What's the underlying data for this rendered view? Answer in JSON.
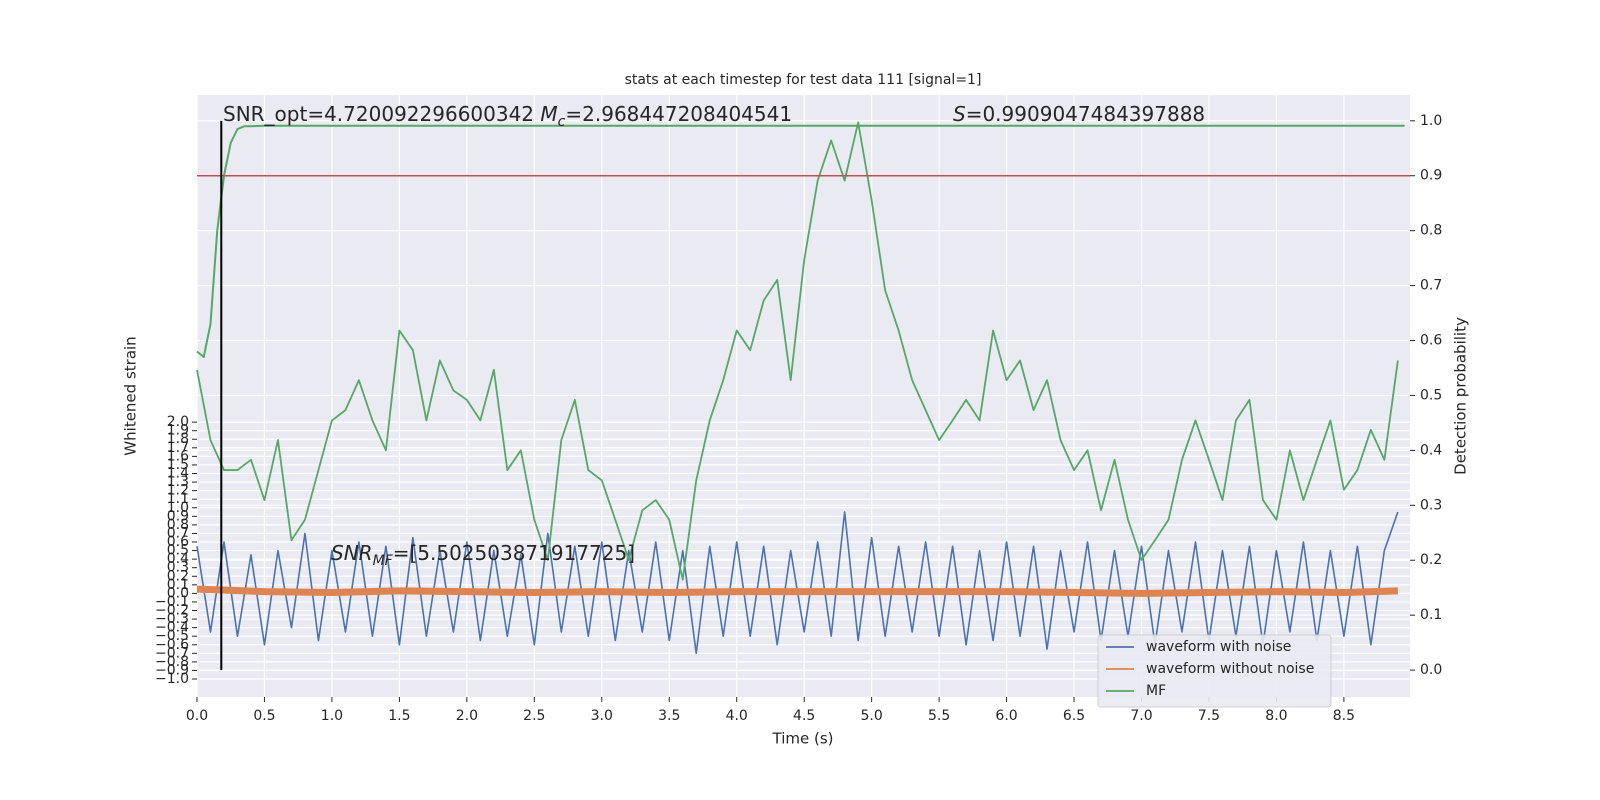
{
  "chart_data": {
    "type": "line",
    "title": "stats at each timestep for test data 111 [signal=1]",
    "xlabel": "Time (s)",
    "ylabel": "Whitened strain",
    "y2label": "Detection probability",
    "grid": true,
    "legend": "lower right",
    "threshold": 0.9,
    "threshold_color": "#c44e52",
    "marker_x": 0.18,
    "annotations": [
      {
        "parts": [
          {
            "text": "SNR_opt=4.720092296600342 "
          },
          {
            "text": "M",
            "style": "italic"
          },
          {
            "text": "c",
            "style": "sub"
          },
          {
            "text": "=2.968447208404541"
          }
        ]
      },
      {
        "parts": [
          {
            "text": "S",
            "style": "italic"
          },
          {
            "text": "=0.9909047484397888"
          }
        ]
      },
      {
        "parts": [
          {
            "text": "SNR",
            "style": "italic"
          },
          {
            "text": "MF",
            "style": "sub"
          },
          {
            "text": "=[5.502503871917725]"
          }
        ]
      }
    ],
    "x": [
      0,
      0.1,
      0.2,
      0.3,
      0.4,
      0.5,
      0.6,
      0.7,
      0.8,
      0.9,
      1,
      1.1,
      1.2,
      1.3,
      1.4,
      1.5,
      1.6,
      1.7,
      1.8,
      1.9,
      2,
      2.1,
      2.2,
      2.3,
      2.4,
      2.5,
      2.6,
      2.7,
      2.8,
      2.9,
      3,
      3.1,
      3.2,
      3.3,
      3.4,
      3.5,
      3.6,
      3.7,
      3.8,
      3.9,
      4,
      4.1,
      4.2,
      4.3,
      4.4,
      4.5,
      4.6,
      4.7,
      4.8,
      4.9,
      5,
      5.1,
      5.2,
      5.3,
      5.4,
      5.5,
      5.6,
      5.7,
      5.8,
      5.9,
      6,
      6.1,
      6.2,
      6.3,
      6.4,
      6.5,
      6.6,
      6.7,
      6.8,
      6.9,
      7,
      7.1,
      7.2,
      7.3,
      7.4,
      7.5,
      7.6,
      7.7,
      7.8,
      7.9,
      8,
      8.1,
      8.2,
      8.3,
      8.4,
      8.5,
      8.6,
      8.7,
      8.8,
      8.9
    ],
    "series": [
      {
        "name": "waveform with noise",
        "color": "#4c72b0",
        "values": [
          0.55,
          -0.45,
          0.6,
          -0.5,
          0.45,
          -0.6,
          0.5,
          -0.4,
          0.7,
          -0.55,
          0.5,
          -0.45,
          0.6,
          -0.5,
          0.55,
          -0.6,
          0.65,
          -0.5,
          0.5,
          -0.45,
          0.6,
          -0.55,
          0.5,
          -0.5,
          0.45,
          -0.6,
          0.7,
          -0.45,
          0.55,
          -0.5,
          0.6,
          -0.55,
          0.5,
          -0.45,
          0.6,
          -0.55,
          0.5,
          -0.7,
          0.55,
          -0.5,
          0.6,
          -0.5,
          0.55,
          -0.6,
          0.5,
          -0.45,
          0.6,
          -0.5,
          0.95,
          -0.55,
          0.65,
          -0.5,
          0.55,
          -0.45,
          0.6,
          -0.5,
          0.55,
          -0.6,
          0.5,
          -0.55,
          0.6,
          -0.5,
          0.55,
          -0.65,
          0.5,
          -0.45,
          0.6,
          -0.55,
          0.5,
          -0.5,
          0.55,
          -0.6,
          0.5,
          -0.45,
          0.6,
          -0.55,
          0.5,
          -0.5,
          0.55,
          -0.6,
          0.5,
          -0.45,
          0.6,
          -0.55,
          0.5,
          -0.5,
          0.55,
          -0.6,
          0.5,
          0.95
        ]
      },
      {
        "name": "waveform without noise",
        "color": "#dd8452",
        "x": [
          0,
          0.5,
          1,
          1.5,
          2,
          2.5,
          3,
          3.5,
          4,
          4.5,
          5,
          5.5,
          6,
          6.5,
          7,
          7.5,
          8,
          8.5,
          8.9
        ],
        "values": [
          0.05,
          0.02,
          0.01,
          0.03,
          0.02,
          0.01,
          0.02,
          0.01,
          0.02,
          0.02,
          0.02,
          0.02,
          0.02,
          0.01,
          0.0,
          0.01,
          0.02,
          0.01,
          0.03
        ]
      },
      {
        "name": "MF",
        "color": "#55a868",
        "values": [
          2.61,
          1.79,
          1.44,
          1.44,
          1.56,
          1.09,
          1.79,
          0.62,
          0.86,
          1.44,
          2.02,
          2.14,
          2.49,
          2.02,
          1.67,
          3.07,
          2.84,
          2.02,
          2.72,
          2.37,
          2.26,
          2.02,
          2.61,
          1.44,
          1.67,
          0.86,
          0.39,
          1.79,
          2.26,
          1.44,
          1.32,
          0.86,
          0.39,
          0.97,
          1.09,
          0.86,
          0.16,
          1.32,
          2.02,
          2.49,
          3.07,
          2.84,
          3.42,
          3.66,
          2.49,
          3.89,
          4.82,
          5.29,
          4.82,
          5.5,
          4.59,
          3.54,
          3.07,
          2.49,
          2.14,
          1.79,
          2.02,
          2.26,
          2.02,
          3.07,
          2.49,
          2.72,
          2.14,
          2.49,
          1.79,
          1.44,
          1.67,
          0.97,
          1.56,
          0.86,
          0.39,
          0.62,
          0.86,
          1.56,
          2.02,
          1.56,
          1.09,
          2.02,
          2.26,
          1.09,
          0.86,
          1.67,
          1.09,
          1.56,
          2.02,
          1.21,
          1.44,
          1.91,
          1.56,
          2.72
        ]
      },
      {
        "color": "#55a868",
        "axis": "y2",
        "x": [
          0,
          0.05,
          0.1,
          0.15,
          0.2,
          0.25,
          0.3,
          0.35,
          0.4,
          0.5,
          8.95
        ],
        "values": [
          0.58,
          0.57,
          0.63,
          0.8,
          0.9,
          0.96,
          0.985,
          0.99,
          0.99,
          0.991,
          0.991
        ]
      }
    ],
    "xlim": [
      0,
      8.99
    ],
    "xticks": [
      {
        "value": 0,
        "label": "0.0"
      },
      0.5,
      {
        "value": 1,
        "label": "1.0"
      },
      1.5,
      {
        "value": 2,
        "label": "2.0"
      },
      2.5,
      {
        "value": 3,
        "label": "3.0"
      },
      3.5,
      {
        "value": 4,
        "label": "4.0"
      },
      4.5,
      {
        "value": 5,
        "label": "5.0"
      },
      5.5,
      {
        "value": 6,
        "label": "6.0"
      },
      6.5,
      {
        "value": 7,
        "label": "7.0"
      },
      7.5,
      {
        "value": 8,
        "label": "8.0"
      },
      8.5
    ],
    "ylim": [
      -1.21,
      5.82
    ],
    "yticks": [
      {
        "value": -1,
        "label": "−1.0"
      },
      {
        "value": -0.9,
        "label": "−0.9"
      },
      {
        "value": -0.8,
        "label": "−0.8"
      },
      {
        "value": -0.7,
        "label": "−0.7"
      },
      {
        "value": -0.6,
        "label": "−0.6"
      },
      {
        "value": -0.5,
        "label": "−0.5"
      },
      {
        "value": -0.4,
        "label": "−0.4"
      },
      {
        "value": -0.3,
        "label": "−0.3"
      },
      {
        "value": -0.2,
        "label": "−0.2"
      },
      {
        "value": -0.1,
        "label": "−0.1"
      },
      {
        "value": 0,
        "label": "0.0"
      },
      0.1,
      0.2,
      0.3,
      0.4,
      0.5,
      0.6,
      0.7,
      0.8,
      0.9,
      {
        "value": 1,
        "label": "1.0"
      },
      1.1,
      1.2,
      1.3,
      1.4,
      1.5,
      1.6,
      1.7,
      1.8,
      1.9,
      {
        "value": 2,
        "label": "2.0"
      }
    ],
    "y2lim": [
      -0.049,
      1.047
    ],
    "y2ticks": [
      {
        "value": 0,
        "label": "0.0"
      },
      0.1,
      0.2,
      0.3,
      0.4,
      0.5,
      0.6,
      0.7,
      0.8,
      0.9,
      {
        "value": 1,
        "label": "1.0"
      }
    ]
  }
}
